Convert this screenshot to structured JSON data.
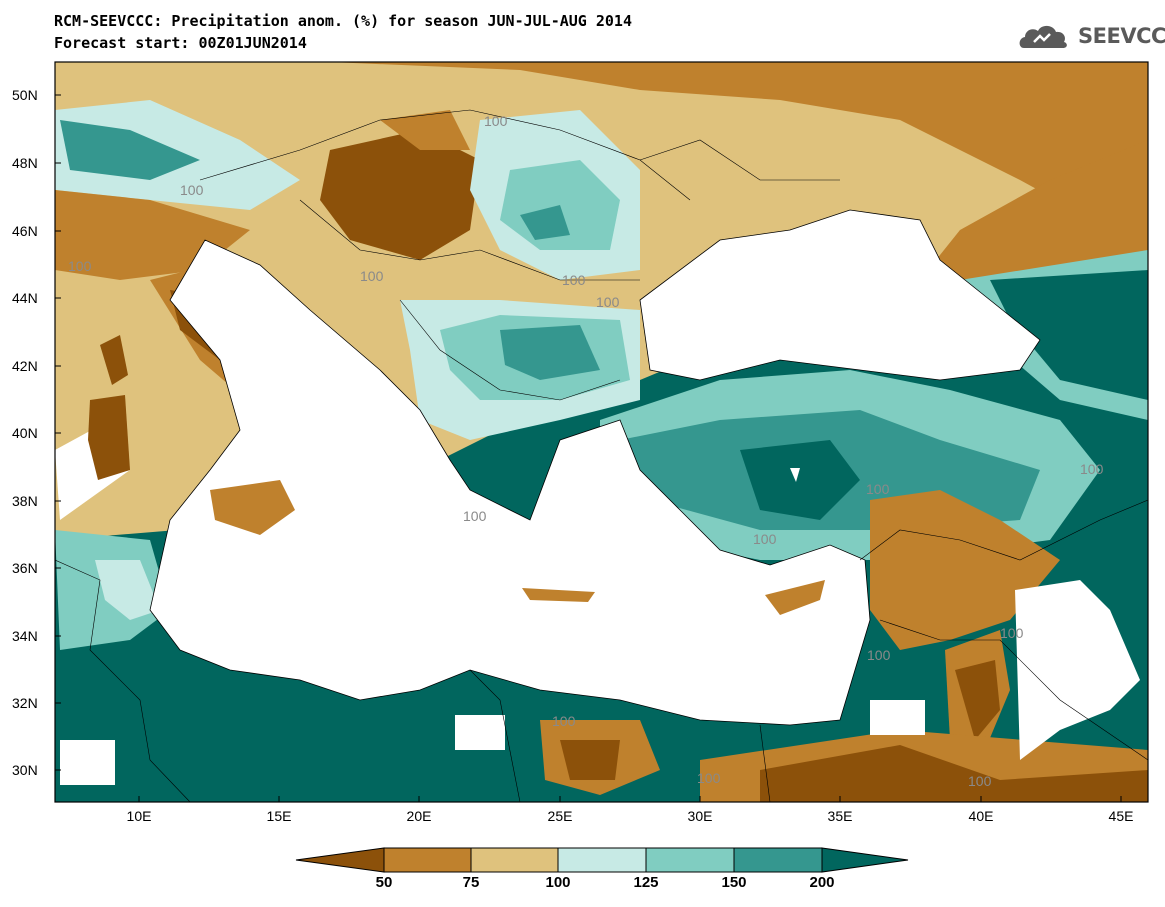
{
  "title_line1": "RCM-SEEVCCC: Precipitation anom. (%) for season JUN-JUL-AUG 2014",
  "title_line2": "Forecast start: 00Z01JUN2014",
  "logo_text": "SEEVCCC",
  "contour_label": "100",
  "latitude_labels": [
    "50N",
    "48N",
    "46N",
    "44N",
    "42N",
    "40N",
    "38N",
    "36N",
    "34N",
    "32N",
    "30N"
  ],
  "longitude_labels": [
    "10E",
    "15E",
    "20E",
    "25E",
    "30E",
    "35E",
    "40E",
    "45E"
  ],
  "colorbar": {
    "ticks": [
      "50",
      "75",
      "100",
      "125",
      "150",
      "200"
    ],
    "colors": [
      "#8c510a",
      "#bf812d",
      "#dfc27d",
      "#c7eae5",
      "#80cdc1",
      "#35978f",
      "#01665e"
    ]
  }
}
